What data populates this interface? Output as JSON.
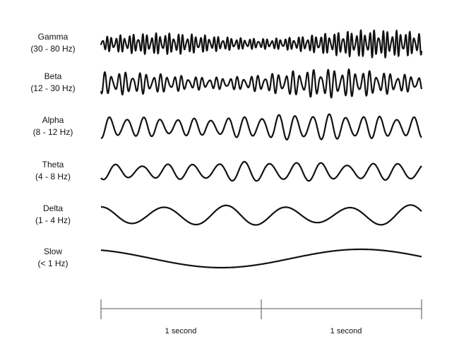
{
  "rows": [
    {
      "name": "Gamma",
      "range": "(30 - 80 Hz)"
    },
    {
      "name": "Beta",
      "range": "(12 - 30 Hz)"
    },
    {
      "name": "Alpha",
      "range": "(8 - 12 Hz)"
    },
    {
      "name": "Theta",
      "range": "(4 - 8 Hz)"
    },
    {
      "name": "Delta",
      "range": "(1 - 4 Hz)"
    },
    {
      "name": "Slow",
      "range": "(< 1 Hz)"
    }
  ],
  "scale": {
    "labels": [
      "1 second",
      "1 second"
    ]
  }
}
